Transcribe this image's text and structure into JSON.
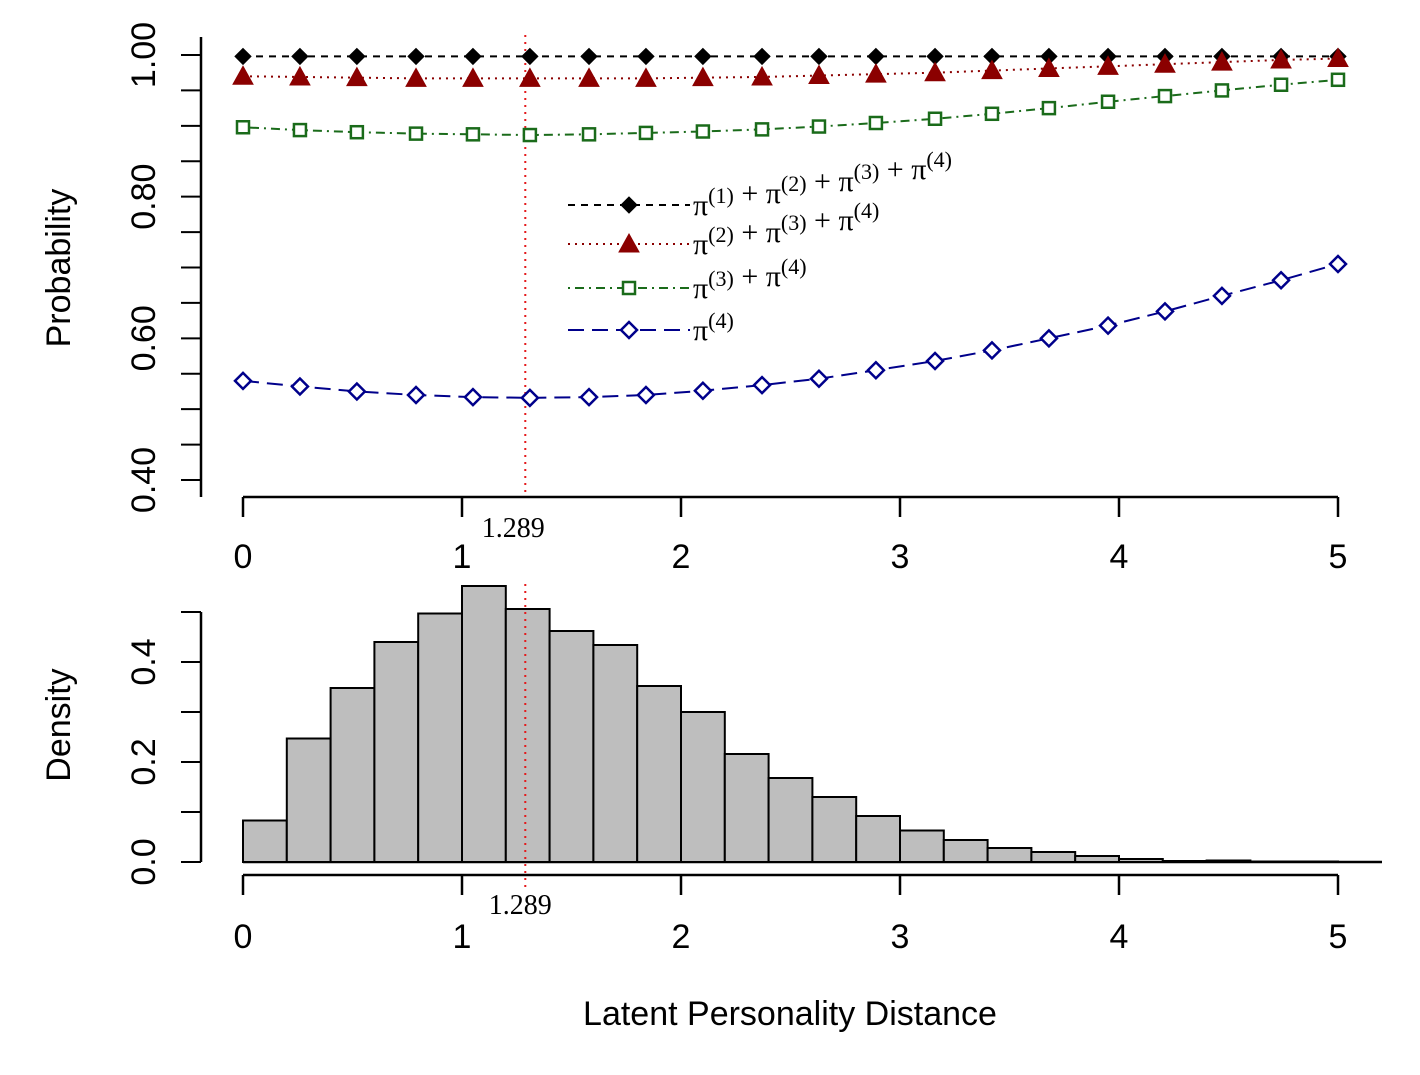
{
  "chart_data": [
    {
      "type": "line",
      "title": "",
      "xlabel": "",
      "ylabel": "Probability",
      "xlim": [
        0,
        5
      ],
      "ylim": [
        0.4,
        1.0
      ],
      "x_ticks": [
        "0",
        "1",
        "2",
        "3",
        "4",
        "5"
      ],
      "y_ticks": [
        "0.40",
        "0.60",
        "0.80",
        "1.00"
      ],
      "grid": false,
      "legend_position": "center",
      "x": [
        0,
        0.26,
        0.52,
        0.79,
        1.05,
        1.31,
        1.58,
        1.84,
        2.1,
        2.37,
        2.63,
        2.89,
        3.16,
        3.42,
        3.68,
        3.95,
        4.21,
        4.47,
        4.74,
        5.0
      ],
      "series": [
        {
          "name": "π(1) + π(2) + π(3) + π(4)",
          "legend_parts": [
            {
              "s": "π",
              "sup": "(1)"
            },
            {
              "op": "+"
            },
            {
              "s": "π",
              "sup": "(2)"
            },
            {
              "op": "+"
            },
            {
              "s": "π",
              "sup": "(3)"
            },
            {
              "op": "+"
            },
            {
              "s": "π",
              "sup": "(4)"
            }
          ],
          "color": "#000000",
          "marker": "filled-diamond",
          "line_style": "dashed",
          "values": [
            0.998,
            0.998,
            0.998,
            0.998,
            0.998,
            0.998,
            0.998,
            0.998,
            0.998,
            0.998,
            0.998,
            0.998,
            0.998,
            0.998,
            0.998,
            0.998,
            0.998,
            0.998,
            0.998,
            0.998
          ]
        },
        {
          "name": "π(2) + π(3) + π(4)",
          "legend_parts": [
            {
              "s": "π",
              "sup": "(2)"
            },
            {
              "op": "+"
            },
            {
              "s": "π",
              "sup": "(3)"
            },
            {
              "op": "+"
            },
            {
              "s": "π",
              "sup": "(4)"
            }
          ],
          "color": "#8b0000",
          "marker": "filled-triangle",
          "line_style": "dotted",
          "values": [
            0.97,
            0.969,
            0.968,
            0.967,
            0.967,
            0.967,
            0.967,
            0.967,
            0.968,
            0.969,
            0.971,
            0.973,
            0.975,
            0.978,
            0.981,
            0.984,
            0.987,
            0.99,
            0.993,
            0.995
          ]
        },
        {
          "name": "π(3) + π(4)",
          "legend_parts": [
            {
              "s": "π",
              "sup": "(3)"
            },
            {
              "op": "+"
            },
            {
              "s": "π",
              "sup": "(4)"
            }
          ],
          "color": "#1a6b1a",
          "marker": "open-square",
          "line_style": "dot-dash",
          "values": [
            0.898,
            0.894,
            0.891,
            0.889,
            0.888,
            0.887,
            0.888,
            0.89,
            0.892,
            0.895,
            0.899,
            0.904,
            0.91,
            0.917,
            0.925,
            0.934,
            0.942,
            0.95,
            0.958,
            0.965
          ]
        },
        {
          "name": "π(4)",
          "legend_parts": [
            {
              "s": "π",
              "sup": "(4)"
            }
          ],
          "color": "#00008b",
          "marker": "open-diamond",
          "line_style": "long-dash",
          "values": [
            0.54,
            0.532,
            0.525,
            0.52,
            0.517,
            0.516,
            0.517,
            0.52,
            0.526,
            0.534,
            0.543,
            0.555,
            0.568,
            0.583,
            0.6,
            0.618,
            0.638,
            0.66,
            0.682,
            0.705
          ]
        }
      ],
      "reference_line": {
        "x": 1.289,
        "label": "1.289",
        "color": "#e41a1c",
        "style": "dotted"
      }
    },
    {
      "type": "bar",
      "subtype": "histogram",
      "title": "",
      "xlabel": "Latent Personality Distance",
      "ylabel": "Density",
      "xlim": [
        0,
        5
      ],
      "ylim": [
        0,
        0.5
      ],
      "x_ticks": [
        "0",
        "1",
        "2",
        "3",
        "4",
        "5"
      ],
      "y_ticks": [
        "0.0",
        "0.2",
        "0.4"
      ],
      "grid": false,
      "bin_edges": [
        0,
        0.2,
        0.4,
        0.6,
        0.8,
        1.0,
        1.2,
        1.4,
        1.6,
        1.8,
        2.0,
        2.2,
        2.4,
        2.6,
        2.8,
        3.0,
        3.2,
        3.4,
        3.6,
        3.8,
        4.0,
        4.2,
        4.4,
        4.6,
        4.8,
        5.0
      ],
      "values": [
        0.083,
        0.247,
        0.348,
        0.44,
        0.497,
        0.552,
        0.506,
        0.462,
        0.434,
        0.352,
        0.3,
        0.216,
        0.168,
        0.13,
        0.092,
        0.063,
        0.044,
        0.028,
        0.02,
        0.012,
        0.006,
        0.002,
        0.003,
        0.001,
        0.001
      ],
      "fill_color": "#bebebe",
      "reference_line": {
        "x": 1.289,
        "label": "1.289",
        "color": "#e41a1c",
        "style": "dotted"
      }
    }
  ]
}
